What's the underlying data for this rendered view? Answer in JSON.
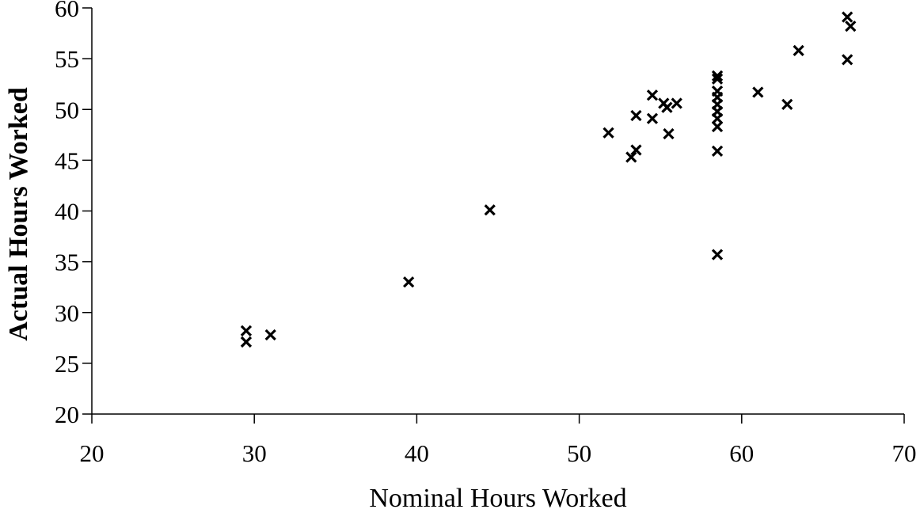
{
  "chart_data": {
    "type": "scatter",
    "title": "",
    "xlabel": "Nominal Hours Worked",
    "ylabel": "Actual Hours Worked",
    "xlim": [
      20,
      70
    ],
    "ylim": [
      20,
      60
    ],
    "x_ticks": [
      20,
      30,
      40,
      50,
      60,
      70
    ],
    "y_ticks": [
      20,
      25,
      30,
      35,
      40,
      45,
      50,
      55,
      60
    ],
    "grid": false,
    "legend": "none",
    "marker": "x",
    "marker_color": "#000000",
    "points": [
      {
        "x": 29.5,
        "y": 28.2
      },
      {
        "x": 29.5,
        "y": 27.1
      },
      {
        "x": 31.0,
        "y": 27.8
      },
      {
        "x": 39.5,
        "y": 33.0
      },
      {
        "x": 44.5,
        "y": 40.1
      },
      {
        "x": 51.8,
        "y": 47.7
      },
      {
        "x": 53.2,
        "y": 45.3
      },
      {
        "x": 53.5,
        "y": 46.0
      },
      {
        "x": 53.5,
        "y": 49.4
      },
      {
        "x": 54.5,
        "y": 51.4
      },
      {
        "x": 54.5,
        "y": 49.1
      },
      {
        "x": 55.2,
        "y": 50.6
      },
      {
        "x": 55.4,
        "y": 50.2
      },
      {
        "x": 55.5,
        "y": 47.6
      },
      {
        "x": 56.0,
        "y": 50.6
      },
      {
        "x": 58.5,
        "y": 53.3
      },
      {
        "x": 58.5,
        "y": 53.0
      },
      {
        "x": 58.5,
        "y": 51.8
      },
      {
        "x": 58.5,
        "y": 51.2
      },
      {
        "x": 58.5,
        "y": 50.5
      },
      {
        "x": 58.5,
        "y": 49.8
      },
      {
        "x": 58.5,
        "y": 49.1
      },
      {
        "x": 58.5,
        "y": 48.3
      },
      {
        "x": 58.5,
        "y": 45.9
      },
      {
        "x": 58.5,
        "y": 35.7
      },
      {
        "x": 61.0,
        "y": 51.7
      },
      {
        "x": 62.8,
        "y": 50.5
      },
      {
        "x": 63.5,
        "y": 55.8
      },
      {
        "x": 66.5,
        "y": 59.1
      },
      {
        "x": 66.7,
        "y": 58.2
      },
      {
        "x": 66.5,
        "y": 54.9
      }
    ]
  }
}
